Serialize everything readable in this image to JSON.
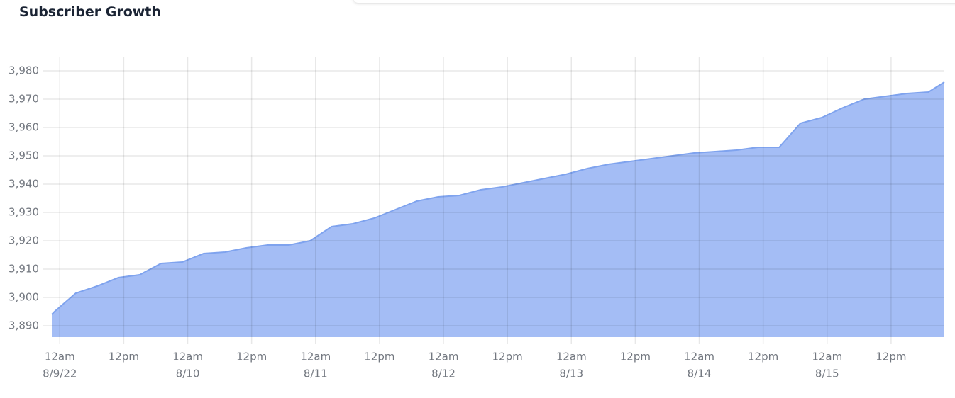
{
  "chart_data": {
    "type": "area",
    "title": "Subscriber Growth",
    "x": [
      "2022-08-08T22:30",
      "2022-08-08T23:00",
      "2022-08-09T03:00",
      "2022-08-09T07:00",
      "2022-08-09T11:00",
      "2022-08-09T15:00",
      "2022-08-09T19:00",
      "2022-08-09T23:00",
      "2022-08-10T03:00",
      "2022-08-10T07:00",
      "2022-08-10T11:00",
      "2022-08-10T15:00",
      "2022-08-10T19:00",
      "2022-08-10T23:00",
      "2022-08-11T03:00",
      "2022-08-11T07:00",
      "2022-08-11T11:00",
      "2022-08-11T15:00",
      "2022-08-11T19:00",
      "2022-08-11T23:00",
      "2022-08-12T03:00",
      "2022-08-12T07:00",
      "2022-08-12T11:00",
      "2022-08-12T15:00",
      "2022-08-12T19:00",
      "2022-08-12T23:00",
      "2022-08-13T03:00",
      "2022-08-13T07:00",
      "2022-08-13T11:00",
      "2022-08-13T15:00",
      "2022-08-13T19:00",
      "2022-08-13T23:00",
      "2022-08-14T03:00",
      "2022-08-14T07:00",
      "2022-08-14T11:00",
      "2022-08-14T15:00",
      "2022-08-14T19:00",
      "2022-08-14T23:00",
      "2022-08-15T03:00",
      "2022-08-15T07:00",
      "2022-08-15T11:00",
      "2022-08-15T15:00",
      "2022-08-15T19:00",
      "2022-08-15T22:00"
    ],
    "values": [
      3894,
      3895,
      3901.5,
      3904,
      3907,
      3908,
      3912,
      3912.5,
      3915.5,
      3916,
      3917.5,
      3918.5,
      3918.5,
      3920,
      3925,
      3926,
      3928,
      3931,
      3934,
      3935.5,
      3936,
      3938,
      3939,
      3940.5,
      3942,
      3943.5,
      3945.5,
      3947,
      3948,
      3949,
      3950,
      3951,
      3951.5,
      3952,
      3953,
      3953,
      3961.5,
      3963.5,
      3967,
      3970,
      3971,
      3972,
      3972.5,
      3976
    ],
    "color": "#a4bdf5",
    "line_color": "#7fa3ee",
    "xlim": [
      "2022-08-08T22:30",
      "2022-08-15T22:00"
    ],
    "xticks": [
      {
        "value": "2022-08-09T00:00",
        "label": "12am",
        "sublabel": "8/9/22"
      },
      {
        "value": "2022-08-09T12:00",
        "label": "12pm"
      },
      {
        "value": "2022-08-10T00:00",
        "label": "12am",
        "sublabel": "8/10"
      },
      {
        "value": "2022-08-10T12:00",
        "label": "12pm"
      },
      {
        "value": "2022-08-11T00:00",
        "label": "12am",
        "sublabel": "8/11"
      },
      {
        "value": "2022-08-11T12:00",
        "label": "12pm"
      },
      {
        "value": "2022-08-12T00:00",
        "label": "12am",
        "sublabel": "8/12"
      },
      {
        "value": "2022-08-12T12:00",
        "label": "12pm"
      },
      {
        "value": "2022-08-13T00:00",
        "label": "12am",
        "sublabel": "8/13"
      },
      {
        "value": "2022-08-13T12:00",
        "label": "12pm"
      },
      {
        "value": "2022-08-14T00:00",
        "label": "12am",
        "sublabel": "8/14"
      },
      {
        "value": "2022-08-14T12:00",
        "label": "12pm"
      },
      {
        "value": "2022-08-15T00:00",
        "label": "12am",
        "sublabel": "8/15"
      },
      {
        "value": "2022-08-15T12:00",
        "label": "12pm"
      }
    ],
    "ylim": [
      3886,
      3985
    ],
    "yticks": [
      {
        "value": 3890,
        "label": "3,890"
      },
      {
        "value": 3900,
        "label": "3,900"
      },
      {
        "value": 3910,
        "label": "3,910"
      },
      {
        "value": 3920,
        "label": "3,920"
      },
      {
        "value": 3930,
        "label": "3,930"
      },
      {
        "value": 3940,
        "label": "3,940"
      },
      {
        "value": 3950,
        "label": "3,950"
      },
      {
        "value": 3960,
        "label": "3,960"
      },
      {
        "value": 3970,
        "label": "3,970"
      },
      {
        "value": 3980,
        "label": "3,980"
      }
    ],
    "grid": true
  }
}
